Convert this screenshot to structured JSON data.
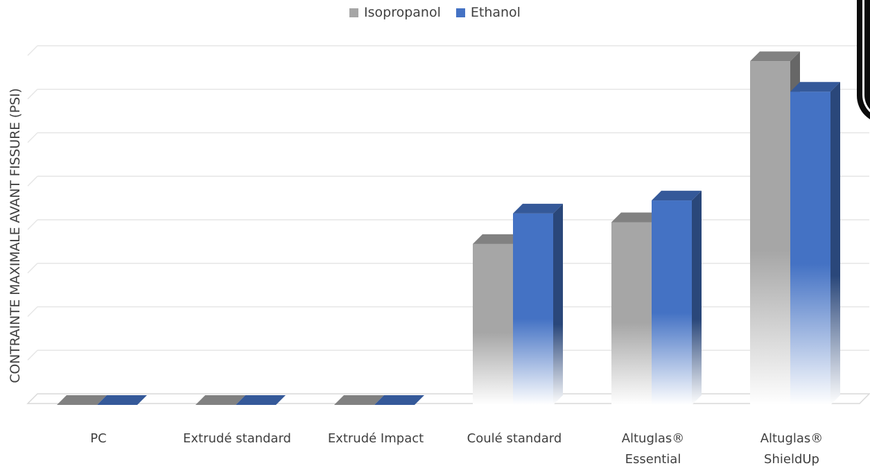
{
  "chart_data": {
    "type": "bar",
    "categories": [
      [
        "PC"
      ],
      [
        "Extrudé standard"
      ],
      [
        "Extrudé Impact"
      ],
      [
        "Coulé standard"
      ],
      [
        "Altuglas®",
        "Essential"
      ],
      [
        "Altuglas®",
        "ShieldUp"
      ]
    ],
    "series": [
      {
        "name": "Isopropanol",
        "values": [
          0,
          0,
          0,
          3.7,
          4.2,
          7.9
        ],
        "color": "#a6a6a6"
      },
      {
        "name": "Ethanol",
        "values": [
          0,
          0,
          0,
          4.4,
          4.7,
          7.2
        ],
        "color": "#4472c4"
      }
    ],
    "ylabel": "CONTRAINTE MAXIMALE AVANT FISSURE (PSI)",
    "ylim": [
      0,
      8
    ],
    "grid": true,
    "legend_position": "top-center",
    "style": "3d-clustered-column"
  }
}
